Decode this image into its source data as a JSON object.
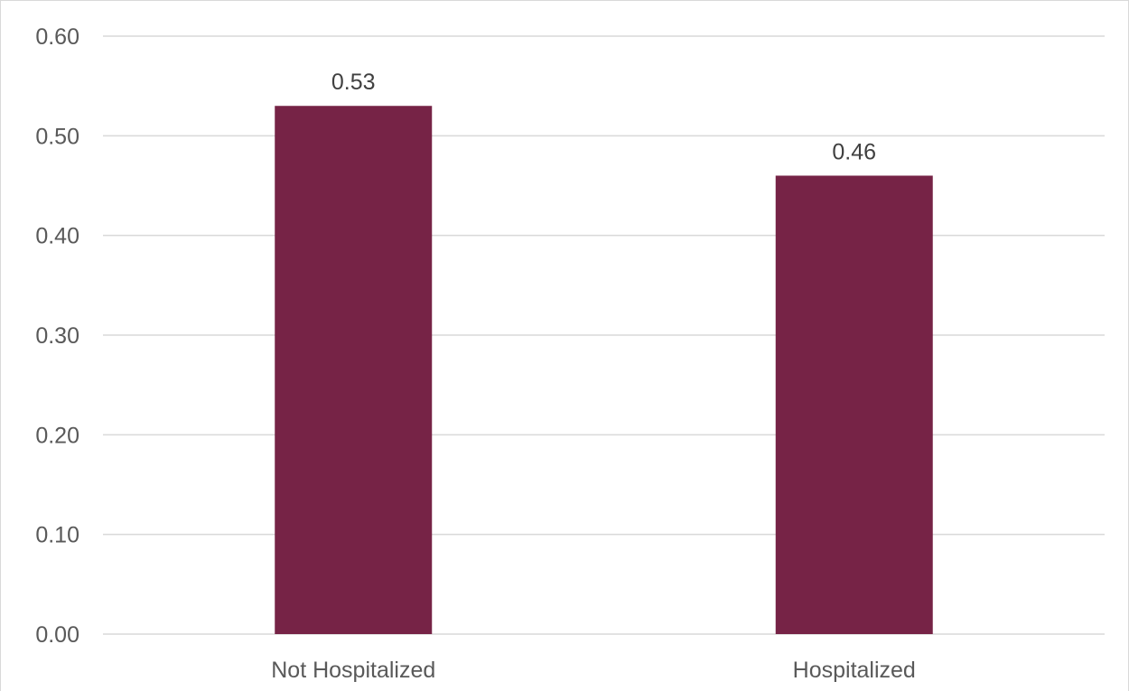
{
  "chart_data": {
    "type": "bar",
    "categories": [
      "Not Hospitalized",
      "Hospitalized"
    ],
    "values": [
      0.53,
      0.46
    ],
    "data_labels": [
      "0.53",
      "0.46"
    ],
    "title": "",
    "xlabel": "",
    "ylabel": "",
    "ylim": [
      0,
      0.6
    ],
    "y_ticks": [
      0.0,
      0.1,
      0.2,
      0.3,
      0.4,
      0.5,
      0.6
    ],
    "y_tick_labels": [
      "0.00",
      "0.10",
      "0.20",
      "0.30",
      "0.40",
      "0.50",
      "0.60"
    ],
    "grid": true,
    "legend": "none",
    "bar_color": "#762346",
    "grid_color": "#d9d9d9"
  }
}
